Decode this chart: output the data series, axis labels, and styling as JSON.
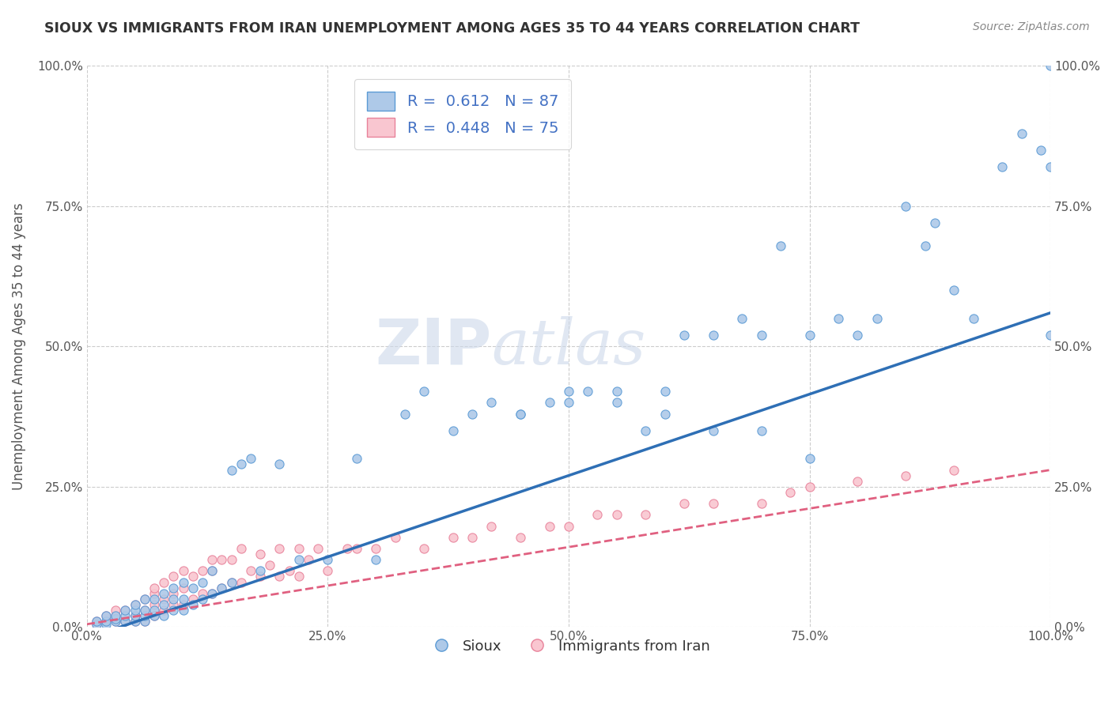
{
  "title": "SIOUX VS IMMIGRANTS FROM IRAN UNEMPLOYMENT AMONG AGES 35 TO 44 YEARS CORRELATION CHART",
  "source": "Source: ZipAtlas.com",
  "ylabel": "Unemployment Among Ages 35 to 44 years",
  "xlim": [
    0.0,
    1.0
  ],
  "ylim": [
    0.0,
    1.0
  ],
  "watermark_zip": "ZIP",
  "watermark_atlas": "atlas",
  "sioux_color": "#aec9e8",
  "sioux_edge_color": "#5b9bd5",
  "iran_color": "#f9c6d0",
  "iran_edge_color": "#e8829a",
  "sioux_line_color": "#2e6fb5",
  "iran_line_color": "#e06080",
  "grid_color": "#cccccc",
  "background_color": "#ffffff",
  "title_color": "#333333",
  "axis_label_color": "#555555",
  "tick_label_color": "#555555",
  "blue_line_x0": 0.0,
  "blue_line_y0": -0.02,
  "blue_line_x1": 1.0,
  "blue_line_y1": 0.56,
  "pink_line_x0": 0.0,
  "pink_line_y0": 0.005,
  "pink_line_x1": 1.0,
  "pink_line_y1": 0.28,
  "sioux_scatter_x": [
    0.01,
    0.01,
    0.02,
    0.02,
    0.02,
    0.03,
    0.03,
    0.03,
    0.04,
    0.04,
    0.04,
    0.05,
    0.05,
    0.05,
    0.05,
    0.06,
    0.06,
    0.06,
    0.06,
    0.07,
    0.07,
    0.07,
    0.08,
    0.08,
    0.08,
    0.09,
    0.09,
    0.09,
    0.1,
    0.1,
    0.1,
    0.11,
    0.11,
    0.12,
    0.12,
    0.13,
    0.13,
    0.14,
    0.15,
    0.15,
    0.16,
    0.17,
    0.18,
    0.2,
    0.22,
    0.25,
    0.28,
    0.3,
    0.33,
    0.35,
    0.38,
    0.4,
    0.42,
    0.45,
    0.48,
    0.5,
    0.52,
    0.55,
    0.58,
    0.6,
    0.62,
    0.65,
    0.68,
    0.7,
    0.72,
    0.75,
    0.78,
    0.8,
    0.82,
    0.85,
    0.87,
    0.88,
    0.9,
    0.92,
    0.95,
    0.97,
    0.99,
    1.0,
    1.0,
    1.0,
    0.45,
    0.5,
    0.55,
    0.6,
    0.65,
    0.7,
    0.75
  ],
  "sioux_scatter_y": [
    0.005,
    0.01,
    0.005,
    0.01,
    0.02,
    0.01,
    0.015,
    0.02,
    0.01,
    0.02,
    0.03,
    0.01,
    0.02,
    0.03,
    0.04,
    0.01,
    0.02,
    0.03,
    0.05,
    0.02,
    0.03,
    0.05,
    0.02,
    0.04,
    0.06,
    0.03,
    0.05,
    0.07,
    0.03,
    0.05,
    0.08,
    0.04,
    0.07,
    0.05,
    0.08,
    0.06,
    0.1,
    0.07,
    0.08,
    0.28,
    0.29,
    0.3,
    0.1,
    0.29,
    0.12,
    0.12,
    0.3,
    0.12,
    0.38,
    0.42,
    0.35,
    0.38,
    0.4,
    0.38,
    0.4,
    0.42,
    0.42,
    0.42,
    0.35,
    0.42,
    0.52,
    0.52,
    0.55,
    0.52,
    0.68,
    0.52,
    0.55,
    0.52,
    0.55,
    0.75,
    0.68,
    0.72,
    0.6,
    0.55,
    0.82,
    0.88,
    0.85,
    0.82,
    1.0,
    0.52,
    0.38,
    0.4,
    0.4,
    0.38,
    0.35,
    0.35,
    0.3
  ],
  "iran_scatter_x": [
    0.01,
    0.01,
    0.02,
    0.02,
    0.03,
    0.03,
    0.03,
    0.04,
    0.04,
    0.05,
    0.05,
    0.05,
    0.06,
    0.06,
    0.06,
    0.07,
    0.07,
    0.07,
    0.07,
    0.08,
    0.08,
    0.08,
    0.09,
    0.09,
    0.09,
    0.1,
    0.1,
    0.1,
    0.11,
    0.11,
    0.12,
    0.12,
    0.13,
    0.13,
    0.13,
    0.14,
    0.14,
    0.15,
    0.15,
    0.16,
    0.16,
    0.17,
    0.18,
    0.18,
    0.19,
    0.2,
    0.2,
    0.21,
    0.22,
    0.22,
    0.23,
    0.24,
    0.25,
    0.27,
    0.28,
    0.3,
    0.32,
    0.35,
    0.38,
    0.4,
    0.42,
    0.45,
    0.48,
    0.5,
    0.53,
    0.55,
    0.58,
    0.62,
    0.65,
    0.7,
    0.73,
    0.75,
    0.8,
    0.85,
    0.9
  ],
  "iran_scatter_y": [
    0.005,
    0.01,
    0.01,
    0.02,
    0.01,
    0.02,
    0.03,
    0.01,
    0.03,
    0.01,
    0.02,
    0.04,
    0.01,
    0.03,
    0.05,
    0.02,
    0.04,
    0.06,
    0.07,
    0.03,
    0.05,
    0.08,
    0.04,
    0.06,
    0.09,
    0.04,
    0.07,
    0.1,
    0.05,
    0.09,
    0.06,
    0.1,
    0.06,
    0.1,
    0.12,
    0.07,
    0.12,
    0.08,
    0.12,
    0.08,
    0.14,
    0.1,
    0.09,
    0.13,
    0.11,
    0.09,
    0.14,
    0.1,
    0.09,
    0.14,
    0.12,
    0.14,
    0.1,
    0.14,
    0.14,
    0.14,
    0.16,
    0.14,
    0.16,
    0.16,
    0.18,
    0.16,
    0.18,
    0.18,
    0.2,
    0.2,
    0.2,
    0.22,
    0.22,
    0.22,
    0.24,
    0.25,
    0.26,
    0.27,
    0.28
  ]
}
